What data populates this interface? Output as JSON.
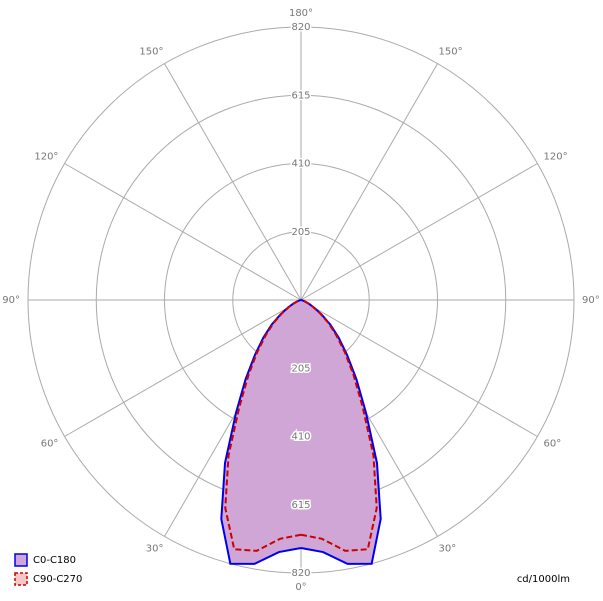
{
  "chart_data": {
    "type": "polar",
    "unit_label": "cd/1000lm",
    "rlim": [
      0,
      820
    ],
    "rticks": [
      205,
      410,
      615,
      820
    ],
    "angle_ticks": [
      {
        "value": 0,
        "label": "0°"
      },
      {
        "value": 30,
        "label": "30°"
      },
      {
        "value": 60,
        "label": "60°"
      },
      {
        "value": 90,
        "label": "90°"
      },
      {
        "value": 120,
        "label": "120°"
      },
      {
        "value": 150,
        "label": "150°"
      },
      {
        "value": 180,
        "label": "180°"
      }
    ],
    "x": [
      0,
      5,
      10,
      15,
      20,
      25,
      30,
      35,
      40,
      45,
      50,
      55,
      60,
      65,
      70,
      75,
      80,
      85,
      90
    ],
    "series": [
      {
        "name": "C0-C180",
        "color": "#0000ee",
        "fill": "#cfa6d6",
        "dashed": false,
        "values": [
          745,
          760,
          805,
          820,
          700,
          540,
          390,
          290,
          215,
          160,
          115,
          75,
          45,
          25,
          12,
          5,
          2,
          0,
          0
        ]
      },
      {
        "name": "C90-C270",
        "color": "#cc0000",
        "fill": "none",
        "dashed": true,
        "values": [
          705,
          720,
          765,
          775,
          665,
          515,
          370,
          275,
          205,
          150,
          108,
          70,
          42,
          23,
          11,
          4,
          1,
          0,
          0
        ]
      }
    ]
  }
}
